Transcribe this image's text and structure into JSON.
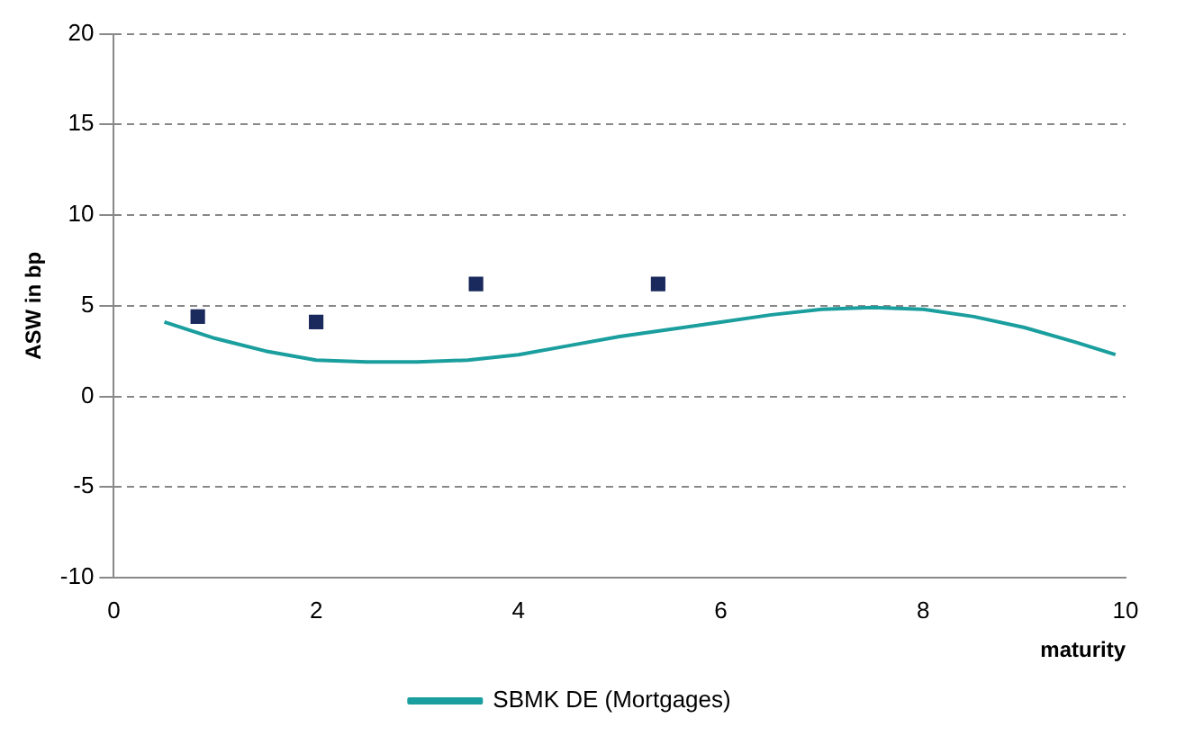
{
  "chart_data": {
    "type": "scatter",
    "xlabel": "maturity",
    "ylabel": "ASW in bp",
    "xlim": [
      0,
      10
    ],
    "xticks": [
      0,
      2,
      4,
      6,
      8,
      10
    ],
    "ylim": [
      -10,
      20
    ],
    "yticks": [
      -10,
      -5,
      0,
      5,
      10,
      15,
      20
    ],
    "grid": "y",
    "legend": "bottom",
    "series": [
      {
        "type": "scatter",
        "color": "#1b2a5c",
        "marker": "square",
        "x": [
          0.83,
          2.0,
          3.58,
          5.38
        ],
        "values": [
          4.4,
          4.1,
          6.2,
          6.2
        ]
      },
      {
        "type": "line",
        "name": "SBMK DE (Mortgages)",
        "color": "#1a9e9e",
        "marker": "none",
        "x": [
          0.5,
          1,
          1.5,
          2,
          2.5,
          3,
          3.5,
          4,
          4.5,
          5,
          5.5,
          6,
          6.5,
          7,
          7.5,
          8,
          8.5,
          9,
          9.5,
          9.9
        ],
        "values": [
          4.1,
          3.2,
          2.5,
          2.0,
          1.9,
          1.9,
          2.0,
          2.3,
          2.8,
          3.3,
          3.7,
          4.1,
          4.5,
          4.8,
          4.9,
          4.8,
          4.4,
          3.8,
          3.0,
          2.3
        ]
      }
    ]
  }
}
